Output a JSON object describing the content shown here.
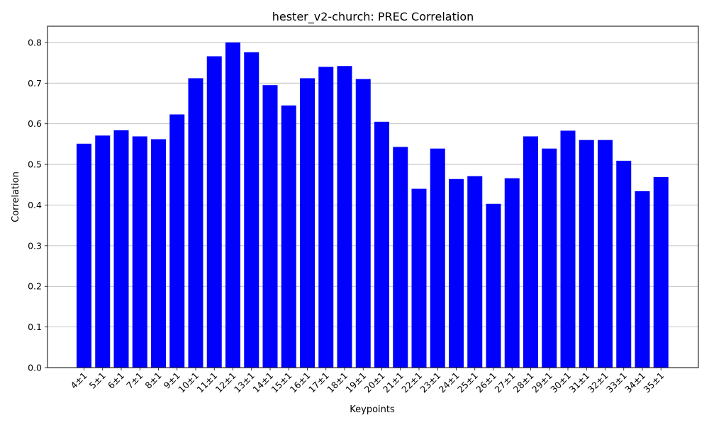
{
  "chart_data": {
    "type": "bar",
    "title": "hester_v2-church: PREC Correlation",
    "xlabel": "Keypoints",
    "ylabel": "Correlation",
    "ylim": [
      0,
      0.84
    ],
    "yticks": [
      "0.0",
      "0.1",
      "0.2",
      "0.3",
      "0.4",
      "0.5",
      "0.6",
      "0.7",
      "0.8"
    ],
    "grid": "horizontal",
    "bar_color": "#0000ff",
    "categories": [
      "4±1",
      "5±1",
      "6±1",
      "7±1",
      "8±1",
      "9±1",
      "10±1",
      "11±1",
      "12±1",
      "13±1",
      "14±1",
      "15±1",
      "16±1",
      "17±1",
      "18±1",
      "19±1",
      "20±1",
      "21±1",
      "22±1",
      "23±1",
      "24±1",
      "25±1",
      "26±1",
      "27±1",
      "28±1",
      "29±1",
      "30±1",
      "31±1",
      "32±1",
      "33±1",
      "34±1",
      "35±1"
    ],
    "values": [
      0.551,
      0.571,
      0.584,
      0.569,
      0.562,
      0.623,
      0.712,
      0.766,
      0.8,
      0.776,
      0.695,
      0.645,
      0.712,
      0.74,
      0.742,
      0.71,
      0.605,
      0.543,
      0.44,
      0.539,
      0.464,
      0.471,
      0.403,
      0.466,
      0.569,
      0.539,
      0.583,
      0.56,
      0.56,
      0.509,
      0.434,
      0.469
    ]
  }
}
